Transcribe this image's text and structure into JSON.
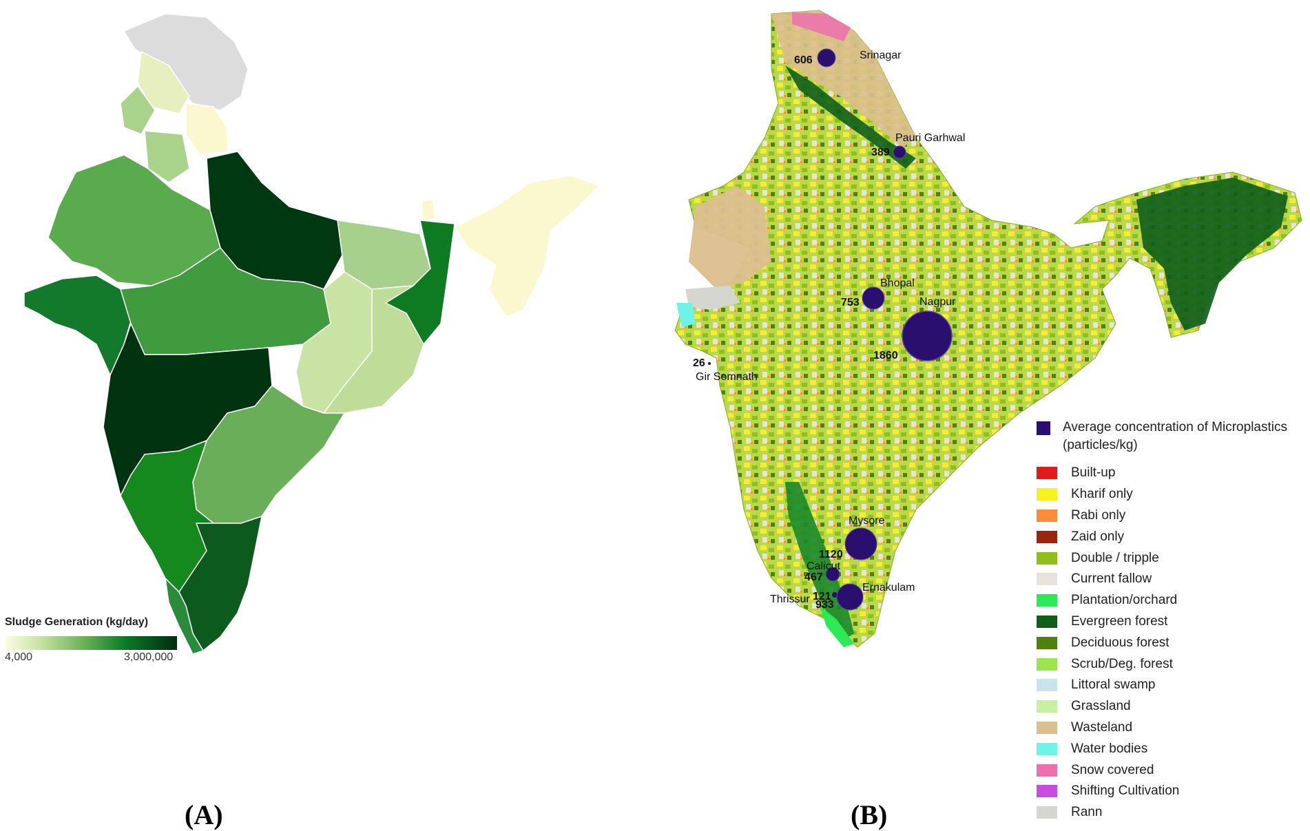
{
  "panel_a": {
    "label": "(A)",
    "scale_title": "Sludge Generation (kg/day)",
    "scale_min": "4,000",
    "scale_max": "3,000,000"
  },
  "panel_b": {
    "label": "(B)",
    "cities": [
      {
        "name": "Srinagar",
        "value": "606"
      },
      {
        "name": "Pauri Garhwal",
        "value": "389"
      },
      {
        "name": "Bhopal",
        "value": "753"
      },
      {
        "name": "Nagpur",
        "value": "1860"
      },
      {
        "name": "Gir Somnath",
        "value": "26"
      },
      {
        "name": "Mysore",
        "value": "1120"
      },
      {
        "name": "Calicut",
        "value": "467"
      },
      {
        "name": "Thrissur",
        "value": "121"
      },
      {
        "name": "Ernakulam",
        "value": "933"
      }
    ],
    "legend_header": "Average concentration of Microplastics (particles/kg)",
    "legend": [
      {
        "label": "Built-up",
        "color": "#e31a1c"
      },
      {
        "label": "Kharif only",
        "color": "#f7f31f"
      },
      {
        "label": "Rabi only",
        "color": "#fb8c3a"
      },
      {
        "label": "Zaid only",
        "color": "#9b2410"
      },
      {
        "label": "Double / tripple",
        "color": "#8fbf18"
      },
      {
        "label": "Current fallow",
        "color": "#e9e3dc"
      },
      {
        "label": "Plantation/orchard",
        "color": "#2bea56"
      },
      {
        "label": "Evergreen forest",
        "color": "#0f5f1a"
      },
      {
        "label": "Deciduous forest",
        "color": "#4d820f"
      },
      {
        "label": "Scrub/Deg. forest",
        "color": "#9be64d"
      },
      {
        "label": "Littoral swamp",
        "color": "#c9e5ec"
      },
      {
        "label": "Grassland",
        "color": "#c8f0a0"
      },
      {
        "label": "Wasteland",
        "color": "#dbbf8e"
      },
      {
        "label": "Water bodies",
        "color": "#6ef3e6"
      },
      {
        "label": "Snow covered",
        "color": "#ef6fae"
      },
      {
        "label": "Shifting Cultivation",
        "color": "#c94be0"
      },
      {
        "label": "Rann",
        "color": "#d6d6d0"
      }
    ]
  }
}
